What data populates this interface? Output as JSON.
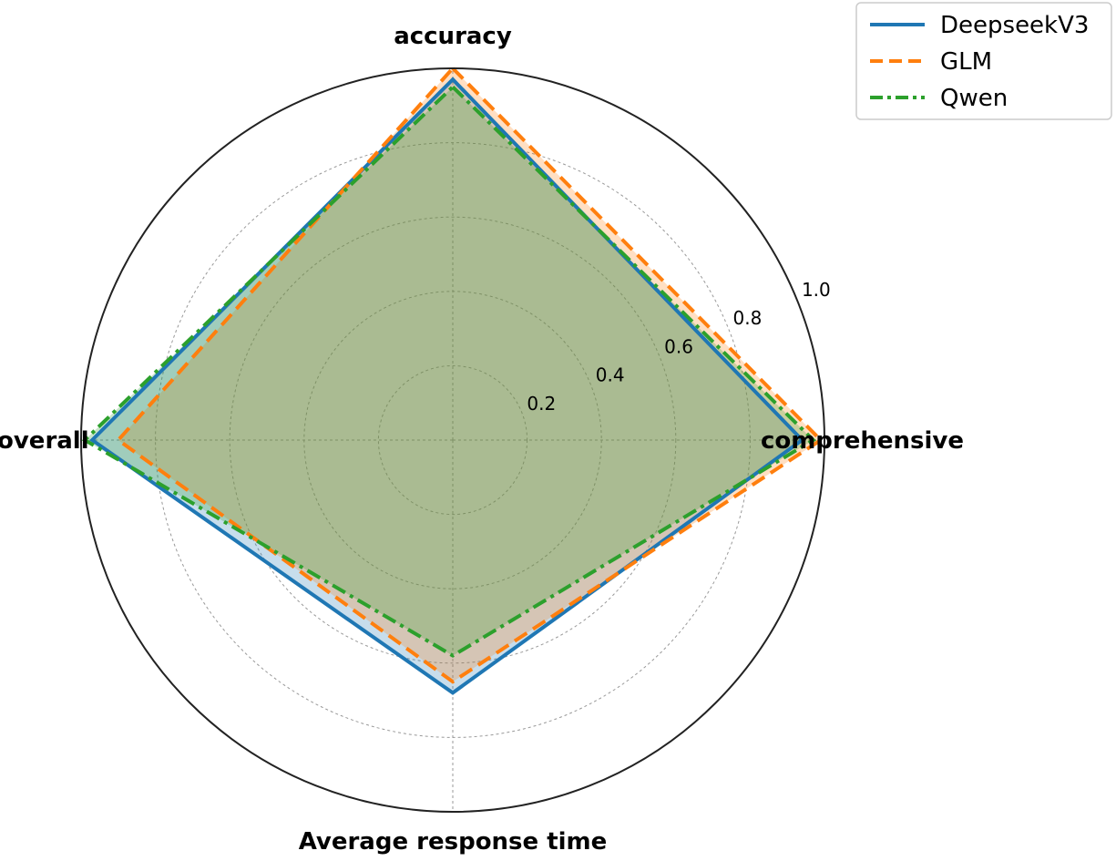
{
  "chart_data": {
    "type": "radar",
    "axes": [
      "accuracy",
      "comprehensive",
      "Average response time",
      "overall"
    ],
    "r_ticks": [
      "0.2",
      "0.4",
      "0.6",
      "0.8",
      "1.0"
    ],
    "r_tick_values": [
      0.2,
      0.4,
      0.6,
      0.8,
      1.0
    ],
    "rlim": [
      0,
      1.0
    ],
    "grid": true,
    "legend_position": "top-right",
    "series": [
      {
        "name": "DeepseekV3",
        "values": [
          0.97,
          0.94,
          0.68,
          0.97
        ],
        "color": "#1f77b4",
        "dash": "solid"
      },
      {
        "name": "GLM",
        "values": [
          1.0,
          0.99,
          0.65,
          0.9
        ],
        "color": "#ff7f0e",
        "dash": "dashed"
      },
      {
        "name": "Qwen",
        "values": [
          0.95,
          0.97,
          0.58,
          0.99
        ],
        "color": "#2ca02c",
        "dash": "dashdot"
      }
    ]
  }
}
